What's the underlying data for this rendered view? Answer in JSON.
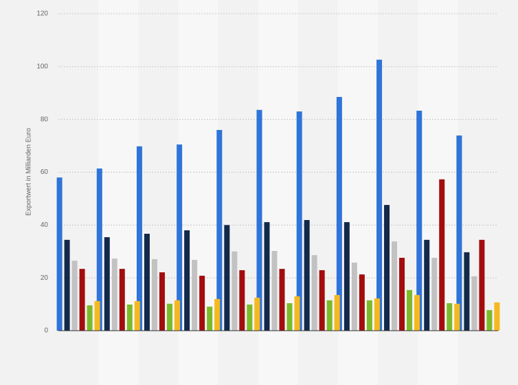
{
  "chart_data": {
    "type": "bar",
    "y_label": "Exportwert in Milliarden Euro",
    "categories": [
      null,
      null,
      null,
      null,
      null,
      null,
      null,
      null,
      null,
      null,
      null
    ],
    "series": [
      {
        "color": "#2f74d8",
        "values": [
          58,
          61.4,
          69.8,
          70.5,
          76,
          83.6,
          83,
          88.5,
          102.6,
          83.3,
          73.9
        ]
      },
      {
        "color": "#13294b",
        "values": [
          34.4,
          35.4,
          36.7,
          38,
          40,
          41.1,
          41.9,
          41.1,
          47.6,
          34.4,
          29.7
        ]
      },
      {
        "color": "#c2c2c2",
        "values": [
          26.5,
          27.3,
          27.1,
          26.8,
          30,
          30.2,
          28.6,
          25.8,
          33.8,
          27.6,
          20.6
        ]
      },
      {
        "color": "#a30d0d",
        "values": [
          23.4,
          23.4,
          22.1,
          20.8,
          22.9,
          23.4,
          22.9,
          21.3,
          27.6,
          57.3,
          34.4
        ]
      },
      {
        "color": "#7cba2a",
        "values": [
          9.6,
          9.9,
          10.2,
          9.1,
          9.9,
          10.4,
          11.5,
          11.5,
          15.4,
          10.4,
          7.8
        ]
      },
      {
        "color": "#f5b91f",
        "values": [
          11.2,
          11.2,
          11.5,
          12,
          12.5,
          13,
          13.5,
          12.2,
          13.5,
          10.2,
          10.7
        ]
      }
    ],
    "ylim": [
      0,
      120
    ],
    "yticks": [
      0,
      20,
      40,
      60,
      80,
      100,
      120
    ],
    "grid": true
  }
}
